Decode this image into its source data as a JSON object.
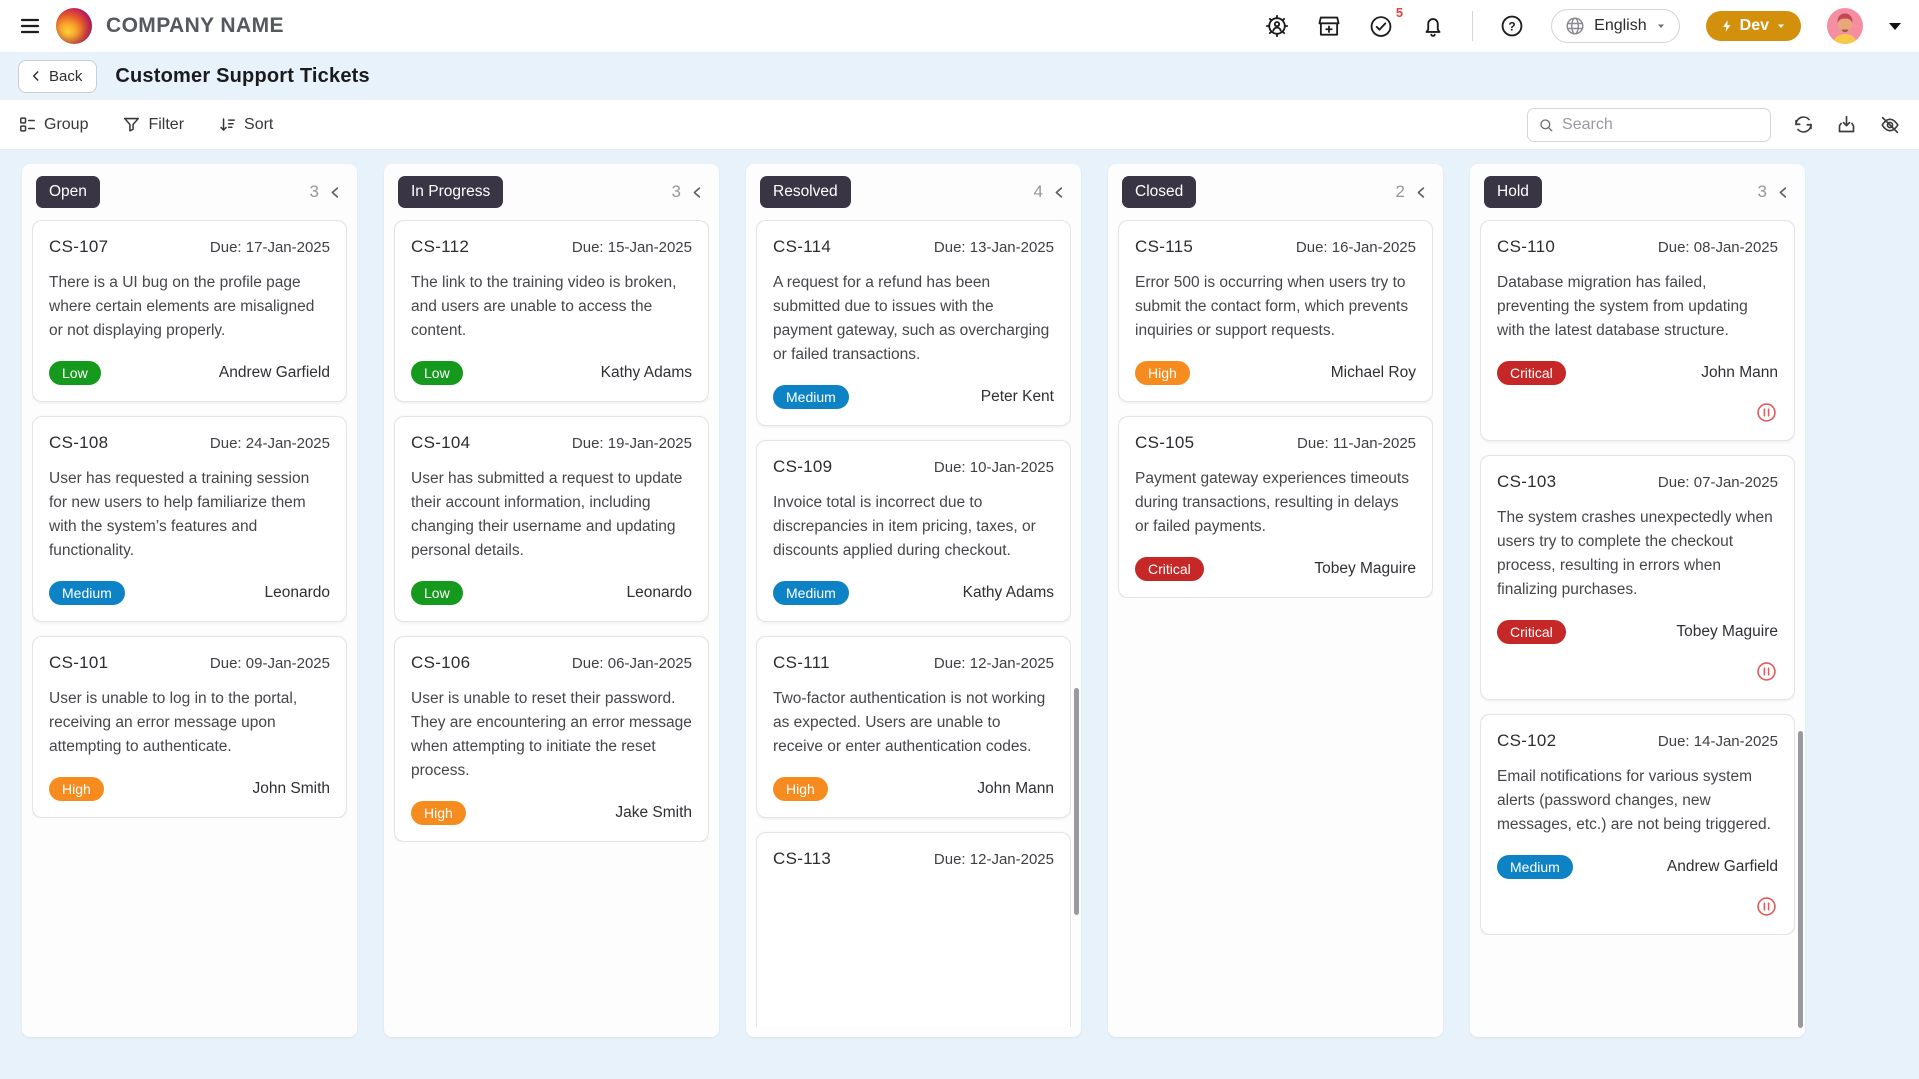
{
  "header": {
    "company_name": "COMPANY NAME",
    "notifications_count": "5",
    "language": "English",
    "env_label": "Dev"
  },
  "subheader": {
    "back_label": "Back",
    "page_title": "Customer Support Tickets"
  },
  "toolbar": {
    "group_label": "Group",
    "filter_label": "Filter",
    "sort_label": "Sort",
    "search_placeholder": "Search"
  },
  "colors": {
    "page_background": "#e8f2fb",
    "column_badge_bg": "#3a3544",
    "dev_button_bg": "#d3900d",
    "notification_badge": "#f03e3e",
    "hold_icon": "#e25c5c",
    "priority": {
      "Low": "#169a1d",
      "Medium": "#0d83c5",
      "High": "#f68b1f",
      "Critical": "#c62828"
    }
  },
  "board": {
    "columns": [
      {
        "name": "Open",
        "count": "3",
        "tickets": [
          {
            "id": "CS-107",
            "due": "Due: 17-Jan-2025",
            "description": "There is a UI bug on the profile page where certain elements are misaligned or not displaying properly.",
            "priority": "Low",
            "assignee": "Andrew Garfield",
            "on_hold": false
          },
          {
            "id": "CS-108",
            "due": "Due: 24-Jan-2025",
            "description": "User has requested a training session for new users to help familiarize them with the system’s features and functionality.",
            "priority": "Medium",
            "assignee": "Leonardo",
            "on_hold": false
          },
          {
            "id": "CS-101",
            "due": "Due: 09-Jan-2025",
            "description": "User is unable to log in to the portal, receiving an error message upon attempting to authenticate.",
            "priority": "High",
            "assignee": "John Smith",
            "on_hold": false
          }
        ]
      },
      {
        "name": "In Progress",
        "count": "3",
        "tickets": [
          {
            "id": "CS-112",
            "due": "Due: 15-Jan-2025",
            "description": "The link to the training video is broken, and users are unable to access the content.",
            "priority": "Low",
            "assignee": "Kathy Adams",
            "on_hold": false
          },
          {
            "id": "CS-104",
            "due": "Due: 19-Jan-2025",
            "description": "User has submitted a request to update their account information, including changing their username and updating personal details.",
            "priority": "Low",
            "assignee": "Leonardo",
            "on_hold": false
          },
          {
            "id": "CS-106",
            "due": "Due: 06-Jan-2025",
            "description": "User is unable to reset their password. They are encountering an error message when attempting to initiate the reset process.",
            "priority": "High",
            "assignee": "Jake Smith",
            "on_hold": false
          }
        ]
      },
      {
        "name": "Resolved",
        "count": "4",
        "scrollbar": {
          "top_pct": 60,
          "height_pct": 26
        },
        "tickets": [
          {
            "id": "CS-114",
            "due": "Due: 13-Jan-2025",
            "description": "A request for a refund has been submitted due to issues with the payment gateway, such as overcharging or failed transactions.",
            "priority": "Medium",
            "assignee": "Peter Kent",
            "on_hold": false
          },
          {
            "id": "CS-109",
            "due": "Due: 10-Jan-2025",
            "description": "Invoice total is incorrect due to discrepancies in item pricing, taxes, or discounts applied during checkout.",
            "priority": "Medium",
            "assignee": "Kathy Adams",
            "on_hold": false
          },
          {
            "id": "CS-111",
            "due": "Due: 12-Jan-2025",
            "description": "Two-factor authentication is not working as expected. Users are unable to receive or enter authentication codes.",
            "priority": "High",
            "assignee": "John Mann",
            "on_hold": false
          },
          {
            "id": "CS-113",
            "due": "Due: 12-Jan-2025",
            "partial": true
          }
        ]
      },
      {
        "name": "Closed",
        "count": "2",
        "tickets": [
          {
            "id": "CS-115",
            "due": "Due: 16-Jan-2025",
            "description": "Error 500 is occurring when users try to submit the contact form, which prevents inquiries or support requests.",
            "priority": "High",
            "assignee": "Michael Roy",
            "on_hold": false
          },
          {
            "id": "CS-105",
            "due": "Due: 11-Jan-2025",
            "description": "Payment gateway experiences timeouts during transactions, resulting in delays or failed payments.",
            "priority": "Critical",
            "assignee": "Tobey Maguire",
            "on_hold": false
          }
        ]
      },
      {
        "name": "Hold",
        "count": "3",
        "scrollbar": {
          "top_pct": 65,
          "height_pct": 34
        },
        "tickets": [
          {
            "id": "CS-110",
            "due": "Due: 08-Jan-2025",
            "description": "Database migration has failed, preventing the system from updating with the latest database structure.",
            "priority": "Critical",
            "assignee": "John Mann",
            "on_hold": true
          },
          {
            "id": "CS-103",
            "due": "Due: 07-Jan-2025",
            "description": "The system crashes unexpectedly when users try to complete the checkout process, resulting in errors when finalizing purchases.",
            "priority": "Critical",
            "assignee": "Tobey Maguire",
            "on_hold": true
          },
          {
            "id": "CS-102",
            "due": "Due: 14-Jan-2025",
            "description": "Email notifications for various system alerts (password changes, new messages, etc.) are not being triggered.",
            "priority": "Medium",
            "assignee": "Andrew Garfield",
            "on_hold": true
          }
        ]
      }
    ]
  }
}
